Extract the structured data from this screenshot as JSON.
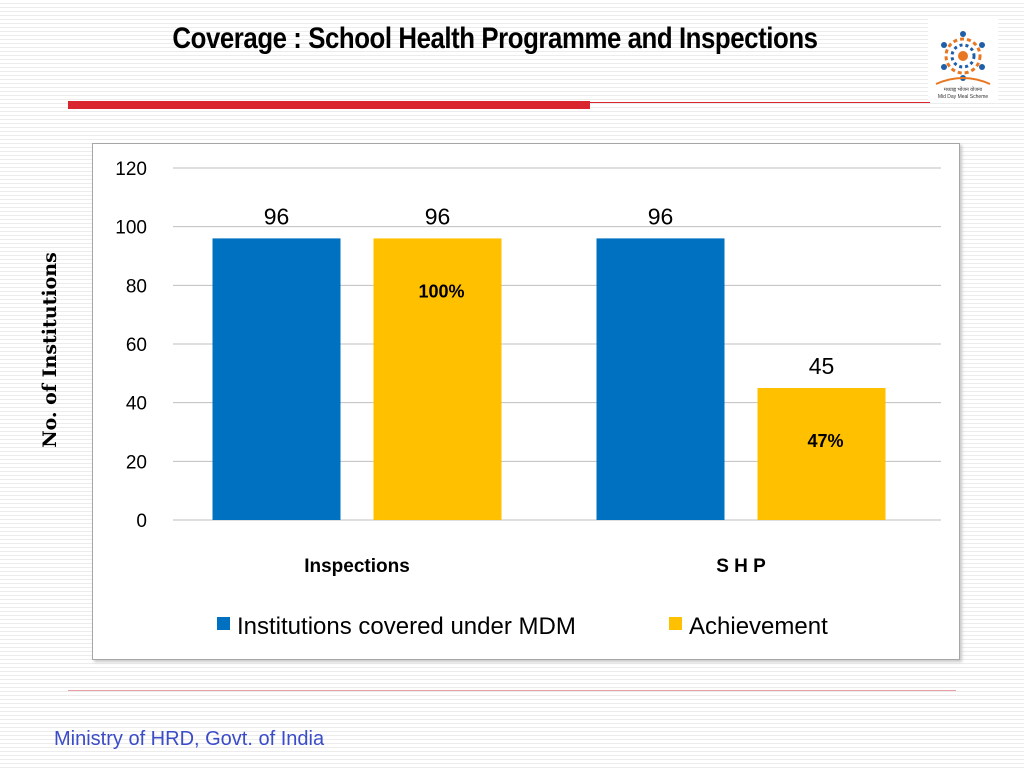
{
  "slide": {
    "title": "Coverage : School Health Programme and Inspections",
    "footer": "Ministry of HRD, Govt. of India",
    "logo_caption_hindi": "मध्याह्न भोजन योजना",
    "logo_caption_english": "Mid Day Meal Scheme"
  },
  "colors": {
    "series_blue": "#0070c0",
    "series_gold": "#ffc000",
    "accent_red": "#d9262e",
    "footer_blue": "#3b4cc8"
  },
  "chart_data": {
    "type": "bar",
    "categories": [
      "Inspections",
      "S H P"
    ],
    "series": [
      {
        "name": "Institutions covered under MDM",
        "values": [
          96,
          96
        ],
        "labels": [
          "96",
          "96"
        ],
        "inner_labels": [
          "",
          ""
        ]
      },
      {
        "name": "Achievement",
        "values": [
          96,
          45
        ],
        "labels": [
          "96",
          "45"
        ],
        "inner_labels": [
          "100%",
          "47%"
        ]
      }
    ],
    "ylabel": "No. of Institutions",
    "xlabel": "",
    "ylim": [
      0,
      120
    ],
    "yticks": [
      0,
      20,
      40,
      60,
      80,
      100,
      120
    ],
    "grid": true,
    "legend": "bottom"
  }
}
